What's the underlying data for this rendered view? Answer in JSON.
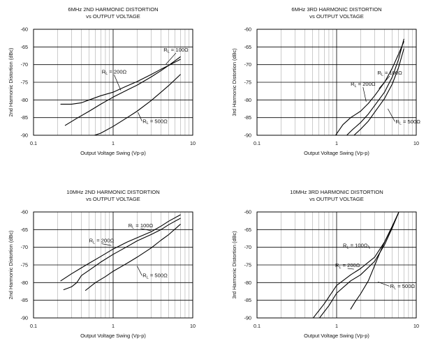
{
  "chart_data": [
    {
      "type": "line",
      "id": "c1",
      "title": [
        "6MHz 2ND HARMONIC DISTORTION",
        "vs OUTPUT VOLTAGE"
      ],
      "xlabel": "Output Voltage Swing (Vp-p)",
      "ylabel": "2nd Harmonic Distortion (dBc)",
      "x_scale": "log",
      "xlim": [
        0.1,
        10
      ],
      "ylim": [
        -90,
        -60
      ],
      "x_ticks": [
        {
          "v": 0.1,
          "label": "0.1"
        },
        {
          "v": 1,
          "label": "1"
        },
        {
          "v": 10,
          "label": "10"
        }
      ],
      "y_ticks": [
        {
          "v": -60,
          "label": "-60"
        },
        {
          "v": -65,
          "label": "-65"
        },
        {
          "v": -70,
          "label": "-70"
        },
        {
          "v": -75,
          "label": "-75"
        },
        {
          "v": -80,
          "label": "-80"
        },
        {
          "v": -85,
          "label": "-85"
        },
        {
          "v": -90,
          "label": "-90"
        }
      ],
      "series": [
        {
          "name": "RL = 100Ω",
          "label_main": "R",
          "label_sub": "L",
          "label_rest": " = 100Ω",
          "x": [
            0.25,
            0.35,
            0.5,
            0.7,
            1,
            1.5,
            2,
            3,
            4,
            5,
            7
          ],
          "y": [
            -87.2,
            -85.2,
            -83.2,
            -81.2,
            -79.2,
            -77.2,
            -75.8,
            -73.5,
            -71.7,
            -70.2,
            -67.8
          ],
          "label_at": [
            4.3,
            -66.3
          ],
          "arrow_to": [
            4.6,
            -69.9
          ]
        },
        {
          "name": "RL = 200Ω",
          "label_main": "R",
          "label_sub": "L",
          "label_rest": " = 200Ω",
          "x": [
            0.22,
            0.3,
            0.4,
            0.5,
            0.7,
            1,
            1.5,
            2,
            3,
            4,
            5,
            7
          ],
          "y": [
            -81.2,
            -81.2,
            -80.8,
            -80.0,
            -78.8,
            -77.8,
            -76.0,
            -74.8,
            -72.8,
            -71.3,
            -70.2,
            -68.5
          ],
          "label_at": [
            0.72,
            -72.5
          ],
          "arrow_to": [
            1.25,
            -77.3
          ]
        },
        {
          "name": "RL = 500Ω",
          "label_main": "R",
          "label_sub": "L",
          "label_rest": " = 500Ω",
          "x": [
            0.5,
            0.7,
            1,
            1.5,
            2,
            3,
            4,
            5,
            7
          ],
          "y": [
            -90.5,
            -89.4,
            -87.5,
            -85.0,
            -83.2,
            -80.2,
            -77.8,
            -75.9,
            -72.8
          ],
          "label_at": [
            2.35,
            -86.5
          ],
          "arrow_to": [
            2.05,
            -83.5
          ]
        }
      ]
    },
    {
      "type": "line",
      "id": "c2",
      "title": [
        "6MHz 3RD HARMONIC DISTORTION",
        "vs OUTPUT VOLTAGE"
      ],
      "xlabel": "Output Voltage Swing (Vp-p)",
      "ylabel": "3rd Harmonic Distortion (dBc)",
      "x_scale": "log",
      "xlim": [
        0.1,
        10
      ],
      "ylim": [
        -90,
        -60
      ],
      "x_ticks": [
        {
          "v": 0.1,
          "label": "0.1"
        },
        {
          "v": 1,
          "label": "1"
        },
        {
          "v": 10,
          "label": "10"
        }
      ],
      "y_ticks": [
        {
          "v": -60,
          "label": "-60"
        },
        {
          "v": -65,
          "label": "-65"
        },
        {
          "v": -70,
          "label": "-70"
        },
        {
          "v": -75,
          "label": "-75"
        },
        {
          "v": -80,
          "label": "-80"
        },
        {
          "v": -85,
          "label": "-85"
        },
        {
          "v": -90,
          "label": "-90"
        }
      ],
      "series": [
        {
          "name": "RL = 100Ω",
          "label_main": "R",
          "label_sub": "L",
          "label_rest": " = 100Ω",
          "x": [
            0.95,
            1.2,
            1.5,
            2,
            2.5,
            3,
            4,
            5,
            6,
            7
          ],
          "y": [
            -90.3,
            -87.0,
            -85.0,
            -83.2,
            -81.0,
            -78.8,
            -75.0,
            -71.0,
            -67.0,
            -63.5
          ],
          "label_at": [
            3.25,
            -72.8
          ],
          "arrow_to": [
            3.4,
            -76.8
          ]
        },
        {
          "name": "RL = 200Ω",
          "label_main": "R",
          "label_sub": "L",
          "label_rest": " = 200Ω",
          "x": [
            1.3,
            1.6,
            2,
            2.5,
            3,
            4,
            5,
            6,
            7
          ],
          "y": [
            -90.3,
            -88.3,
            -86.4,
            -84.0,
            -81.6,
            -77.8,
            -73.5,
            -68.5,
            -62.8
          ],
          "label_at": [
            1.5,
            -76.0
          ],
          "arrow_to": [
            2.35,
            -80.5
          ]
        },
        {
          "name": "RL = 500Ω",
          "label_main": "R",
          "label_sub": "L",
          "label_rest": " = 500Ω",
          "x": [
            1.6,
            2,
            2.5,
            3,
            4,
            5,
            6,
            7
          ],
          "y": [
            -90.3,
            -88.3,
            -86.0,
            -83.5,
            -79.6,
            -75.5,
            -70.8,
            -65.5
          ],
          "label_at": [
            5.5,
            -86.6
          ],
          "arrow_to": [
            4.4,
            -82.5
          ]
        }
      ]
    },
    {
      "type": "line",
      "id": "c3",
      "title": [
        "10MHz 2ND HARMONIC DISTORTION",
        "vs OUTPUT VOLTAGE"
      ],
      "xlabel": "Output Voltage Swing (Vp-p)",
      "ylabel": "2nd Harmonic Distortion (dBc)",
      "x_scale": "log",
      "xlim": [
        0.1,
        10
      ],
      "ylim": [
        -90,
        -60
      ],
      "x_ticks": [
        {
          "v": 0.1,
          "label": "0.1"
        },
        {
          "v": 1,
          "label": "1"
        },
        {
          "v": 10,
          "label": "10"
        }
      ],
      "y_ticks": [
        {
          "v": -60,
          "label": "-60"
        },
        {
          "v": -65,
          "label": "-65"
        },
        {
          "v": -70,
          "label": "-70"
        },
        {
          "v": -75,
          "label": "-75"
        },
        {
          "v": -80,
          "label": "-80"
        },
        {
          "v": -85,
          "label": "-85"
        },
        {
          "v": -90,
          "label": "-90"
        }
      ],
      "series": [
        {
          "name": "RL = 100Ω",
          "label_main": "R",
          "label_sub": "L",
          "label_rest": " = 100Ω",
          "x": [
            0.22,
            0.3,
            0.4,
            0.5,
            0.7,
            1,
            1.5,
            2,
            3,
            4,
            5,
            7
          ],
          "y": [
            -79.5,
            -77.5,
            -75.8,
            -74.5,
            -72.6,
            -70.5,
            -68.5,
            -67.3,
            -65.6,
            -64.0,
            -62.6,
            -60.8
          ],
          "label_at": [
            1.55,
            -64.3
          ],
          "arrow_to": [
            3.0,
            -65.3
          ]
        },
        {
          "name": "RL = 200Ω",
          "label_main": "R",
          "label_sub": "L",
          "label_rest": " = 200Ω",
          "x": [
            0.24,
            0.3,
            0.35,
            0.4,
            0.5,
            0.7,
            1,
            1.5,
            2,
            3,
            4,
            5,
            7
          ],
          "y": [
            -82.0,
            -81.2,
            -80.0,
            -78.0,
            -76.5,
            -74.2,
            -72.0,
            -69.8,
            -68.2,
            -66.4,
            -65.0,
            -63.6,
            -61.8
          ],
          "label_at": [
            0.5,
            -68.6
          ],
          "arrow_to": [
            0.95,
            -69.5
          ]
        },
        {
          "name": "RL = 500Ω",
          "label_main": "R",
          "label_sub": "L",
          "label_rest": " = 500Ω",
          "x": [
            0.45,
            0.6,
            0.8,
            1,
            1.5,
            2,
            3,
            4,
            5,
            7
          ],
          "y": [
            -82.2,
            -80.0,
            -78.3,
            -76.8,
            -74.5,
            -72.8,
            -70.2,
            -68.0,
            -66.4,
            -63.5
          ],
          "label_at": [
            2.35,
            -78.5
          ],
          "arrow_to": [
            2.0,
            -75.3
          ]
        }
      ]
    },
    {
      "type": "line",
      "id": "c4",
      "title": [
        "10MHz 3RD HARMONIC DISTORTION",
        "vs OUTPUT VOLTAGE"
      ],
      "xlabel": "Output Voltage Swing (Vp-p)",
      "ylabel": "3rd Harmonic Distortion (dBc)",
      "x_scale": "log",
      "xlim": [
        0.1,
        10
      ],
      "ylim": [
        -90,
        -60
      ],
      "x_ticks": [
        {
          "v": 0.1,
          "label": "0.1"
        },
        {
          "v": 1,
          "label": "1"
        },
        {
          "v": 10,
          "label": "10"
        }
      ],
      "y_ticks": [
        {
          "v": -60,
          "label": "-60"
        },
        {
          "v": -65,
          "label": "-65"
        },
        {
          "v": -70,
          "label": "-70"
        },
        {
          "v": -75,
          "label": "-75"
        },
        {
          "v": -80,
          "label": "-80"
        },
        {
          "v": -85,
          "label": "-85"
        },
        {
          "v": -90,
          "label": "-90"
        }
      ],
      "series": [
        {
          "name": "RL = 100Ω",
          "label_main": "R",
          "label_sub": "L",
          "label_rest": " = 100Ω",
          "x": [
            0.5,
            0.7,
            1,
            1.5,
            2,
            3,
            4,
            5,
            6
          ],
          "y": [
            -90.2,
            -86.0,
            -80.8,
            -77.8,
            -76.0,
            -72.8,
            -68.5,
            -64.0,
            -60.2
          ],
          "label_at": [
            1.2,
            -70.0
          ],
          "arrow_to": [
            2.6,
            -70.4
          ]
        },
        {
          "name": "RL = 200Ω",
          "label_main": "R",
          "label_sub": "L",
          "label_rest": " = 200Ω",
          "x": [
            0.6,
            0.8,
            1,
            1.5,
            2,
            3,
            4,
            5,
            6
          ],
          "y": [
            -90.2,
            -86.5,
            -83.0,
            -79.5,
            -77.8,
            -74.0,
            -69.3,
            -64.5,
            -60.2
          ],
          "label_at": [
            0.96,
            -75.6
          ],
          "arrow_to": [
            1.65,
            -76.2
          ]
        },
        {
          "name": "RL = 500Ω",
          "label_main": "R",
          "label_sub": "L",
          "label_rest": " = 500Ω",
          "x": [
            1.5,
            1.7,
            2,
            2.5,
            3,
            3.5,
            4,
            5,
            6
          ],
          "y": [
            -87.5,
            -85.5,
            -83.2,
            -79.5,
            -75.2,
            -71.5,
            -68.5,
            -64.2,
            -60.2
          ],
          "label_at": [
            4.7,
            -81.5
          ],
          "arrow_to": [
            3.3,
            -79.8
          ]
        }
      ]
    }
  ]
}
